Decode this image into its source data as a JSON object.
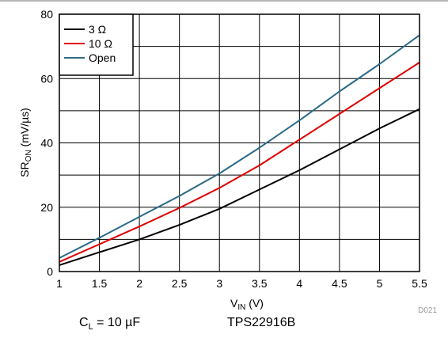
{
  "chart_data": {
    "type": "line",
    "xlabel_main": "V",
    "xlabel_sub": "IN",
    "xlabel_unit": " (V)",
    "ylabel_main": "SR",
    "ylabel_sub": "ON",
    "ylabel_unit": " (mV/µs)",
    "xlim": [
      1,
      5.5
    ],
    "ylim": [
      0,
      80
    ],
    "x_ticks": [
      "1",
      "1.5",
      "2",
      "2.5",
      "3",
      "3.5",
      "4",
      "4.5",
      "5",
      "5.5"
    ],
    "y_ticks": [
      "0",
      "20",
      "40",
      "60",
      "80"
    ],
    "grid": true,
    "legend_position": "top-left",
    "x": [
      1,
      1.5,
      2,
      2.5,
      3,
      3.5,
      4,
      4.5,
      5,
      5.5
    ],
    "series": [
      {
        "name": "3 Ω",
        "color": "#000000",
        "values": [
          2.0,
          6.0,
          10.0,
          14.5,
          19.5,
          25.5,
          31.5,
          38.0,
          44.5,
          50.5
        ]
      },
      {
        "name": "10 Ω",
        "color": "#e00000",
        "values": [
          3.0,
          8.5,
          14.0,
          19.8,
          26.0,
          33.0,
          41.0,
          49.0,
          57.0,
          65.0
        ]
      },
      {
        "name": "Open",
        "color": "#2b6a85",
        "values": [
          4.2,
          10.5,
          17.0,
          23.5,
          30.5,
          38.5,
          47.0,
          56.0,
          64.5,
          73.5
        ]
      }
    ]
  },
  "figure_id": "D021",
  "footnote": {
    "cl_main": "C",
    "cl_sub": "L",
    "cl_rest": " = 10 µF",
    "device": "TPS22916B"
  }
}
